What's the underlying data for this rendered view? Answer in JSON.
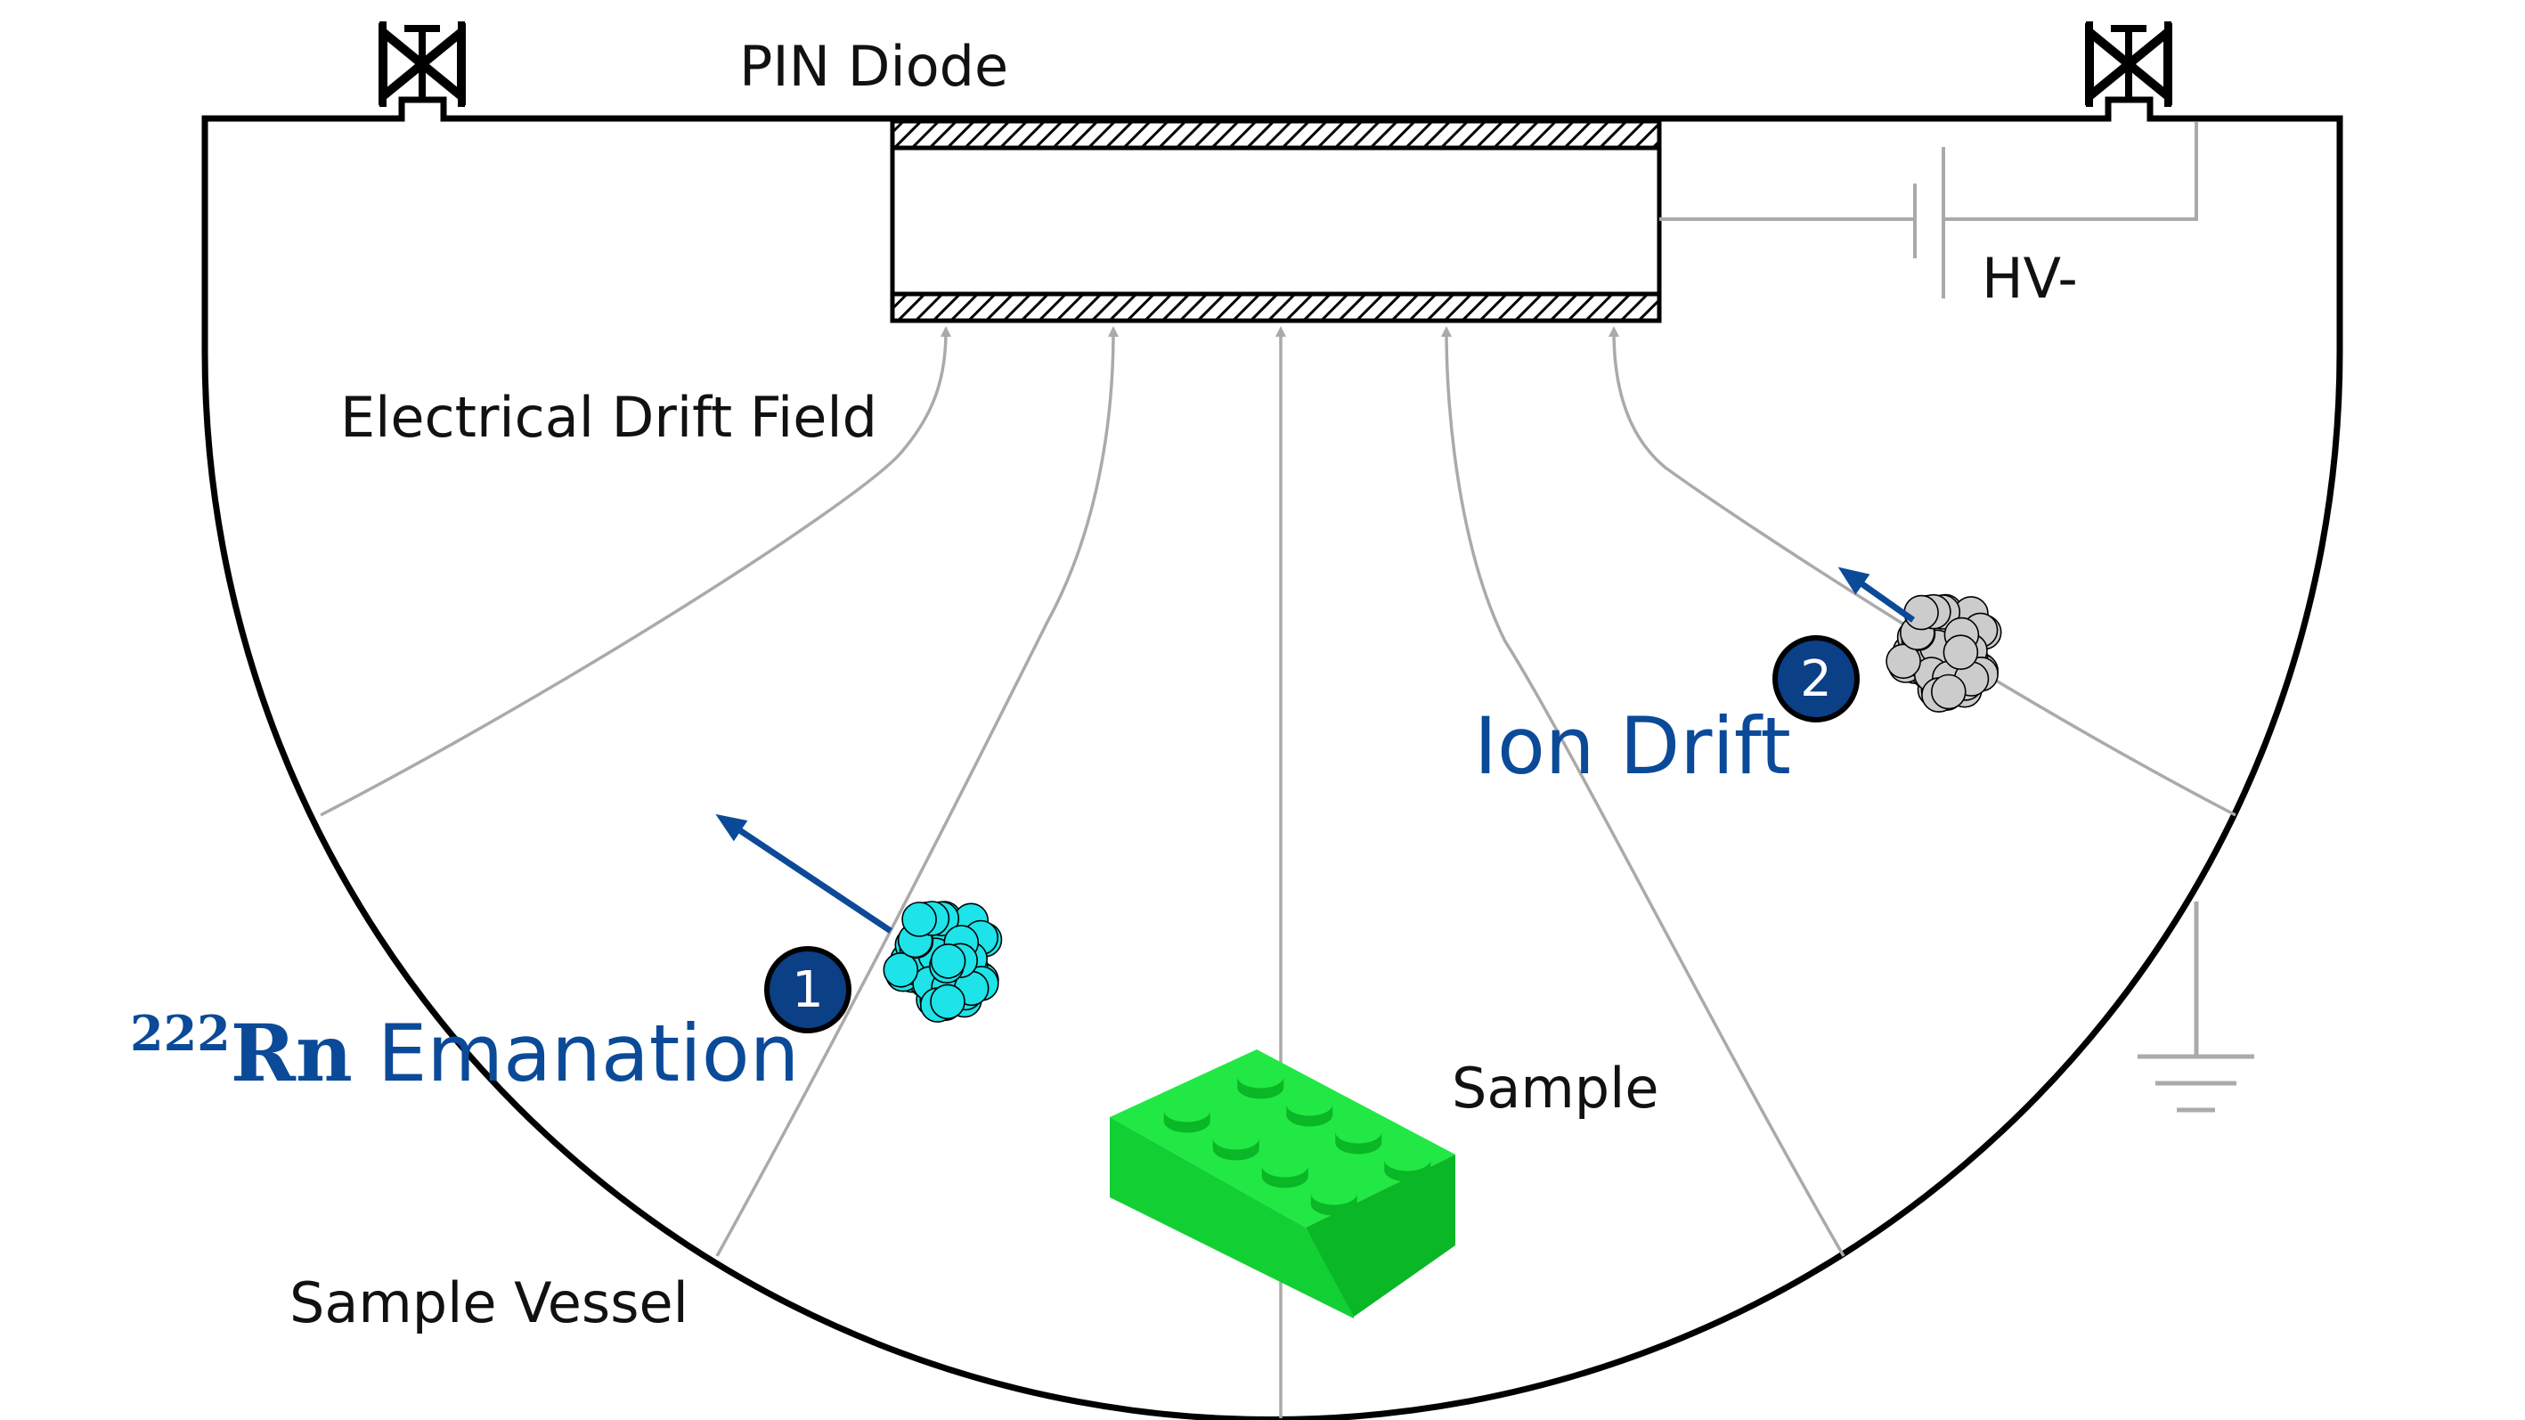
{
  "labels": {
    "pin_diode": "PIN Diode",
    "hv": "HV-",
    "drift_field": "Electrical Drift Field",
    "ion_drift": "Ion Drift",
    "rn_mass": "222",
    "rn_symbol": "Rn",
    "rn_rest": " Emanation",
    "sample": "Sample",
    "vessel": "Sample Vessel"
  },
  "steps": [
    "1",
    "2"
  ],
  "colors": {
    "outline": "#000000",
    "field_lines": "#aaaaaa",
    "blue": "#0b4a98",
    "badge": "#0b3f86",
    "cyan_nucleus": "#1ee3e8",
    "grey_nucleus": "#cccccc",
    "brick_top": "#22e845",
    "brick_front": "#12d034",
    "brick_side": "#0ab726"
  },
  "icons": {
    "valve_left": "valve-icon",
    "valve_right": "valve-icon",
    "battery": "battery-icon",
    "ground": "ground-icon",
    "brick": "lego-brick-icon",
    "nucleus_rn": "nucleus-icon",
    "nucleus_daughter": "nucleus-icon"
  }
}
